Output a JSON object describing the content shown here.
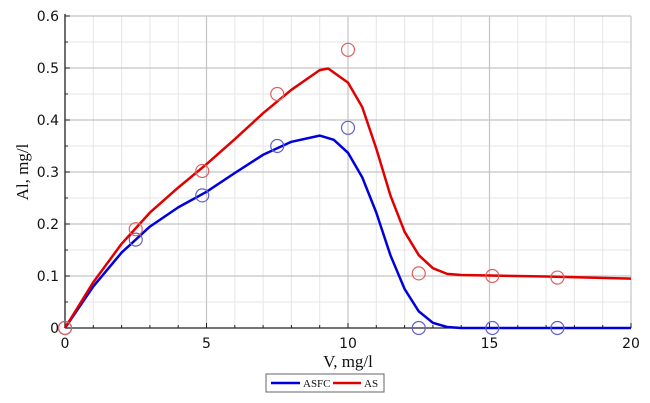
{
  "chart_data": {
    "type": "line",
    "title": "",
    "xlabel": "V, mg/l",
    "ylabel": "Al, mg/l",
    "xlim": [
      0,
      20
    ],
    "ylim": [
      0,
      0.6
    ],
    "xticks": [
      "0",
      "5",
      "10",
      "15",
      "20"
    ],
    "yticks": [
      "0",
      "0.1",
      "0.2",
      "0.3",
      "0.4",
      "0.5",
      "0.6"
    ],
    "grid": true,
    "legend_position": "bottom-center",
    "series": [
      {
        "name": "ASFC",
        "color": "#0000dd",
        "marker_color": "#6060d0",
        "points": [
          [
            0,
            0
          ],
          [
            2.5,
            0.17
          ],
          [
            4.85,
            0.255
          ],
          [
            7.5,
            0.35
          ],
          [
            10,
            0.385
          ],
          [
            12.5,
            0
          ],
          [
            15.1,
            0
          ],
          [
            17.4,
            0
          ]
        ],
        "curve": [
          [
            0,
            0
          ],
          [
            1,
            0.08
          ],
          [
            2,
            0.145
          ],
          [
            3,
            0.195
          ],
          [
            4,
            0.232
          ],
          [
            5,
            0.262
          ],
          [
            6,
            0.298
          ],
          [
            7,
            0.333
          ],
          [
            8,
            0.358
          ],
          [
            9,
            0.37
          ],
          [
            9.5,
            0.362
          ],
          [
            10,
            0.337
          ],
          [
            10.5,
            0.29
          ],
          [
            11,
            0.222
          ],
          [
            11.5,
            0.14
          ],
          [
            12,
            0.075
          ],
          [
            12.5,
            0.032
          ],
          [
            13,
            0.01
          ],
          [
            13.5,
            0.002
          ],
          [
            14,
            0
          ],
          [
            20,
            0
          ]
        ]
      },
      {
        "name": "AS",
        "color": "#e00000",
        "marker_color": "#e06060",
        "points": [
          [
            0,
            0
          ],
          [
            2.5,
            0.19
          ],
          [
            4.85,
            0.302
          ],
          [
            7.5,
            0.45
          ],
          [
            10,
            0.535
          ],
          [
            12.5,
            0.105
          ],
          [
            15.1,
            0.1
          ],
          [
            17.4,
            0.097
          ]
        ],
        "curve": [
          [
            0,
            0
          ],
          [
            1,
            0.088
          ],
          [
            2,
            0.162
          ],
          [
            3,
            0.222
          ],
          [
            4,
            0.27
          ],
          [
            5,
            0.315
          ],
          [
            6,
            0.363
          ],
          [
            7,
            0.413
          ],
          [
            8,
            0.458
          ],
          [
            9,
            0.496
          ],
          [
            9.3,
            0.499
          ],
          [
            10,
            0.472
          ],
          [
            10.5,
            0.425
          ],
          [
            11,
            0.345
          ],
          [
            11.5,
            0.255
          ],
          [
            12,
            0.185
          ],
          [
            12.5,
            0.14
          ],
          [
            13,
            0.115
          ],
          [
            13.5,
            0.104
          ],
          [
            14,
            0.102
          ],
          [
            15,
            0.101
          ],
          [
            17,
            0.099
          ],
          [
            20,
            0.095
          ]
        ]
      }
    ]
  }
}
